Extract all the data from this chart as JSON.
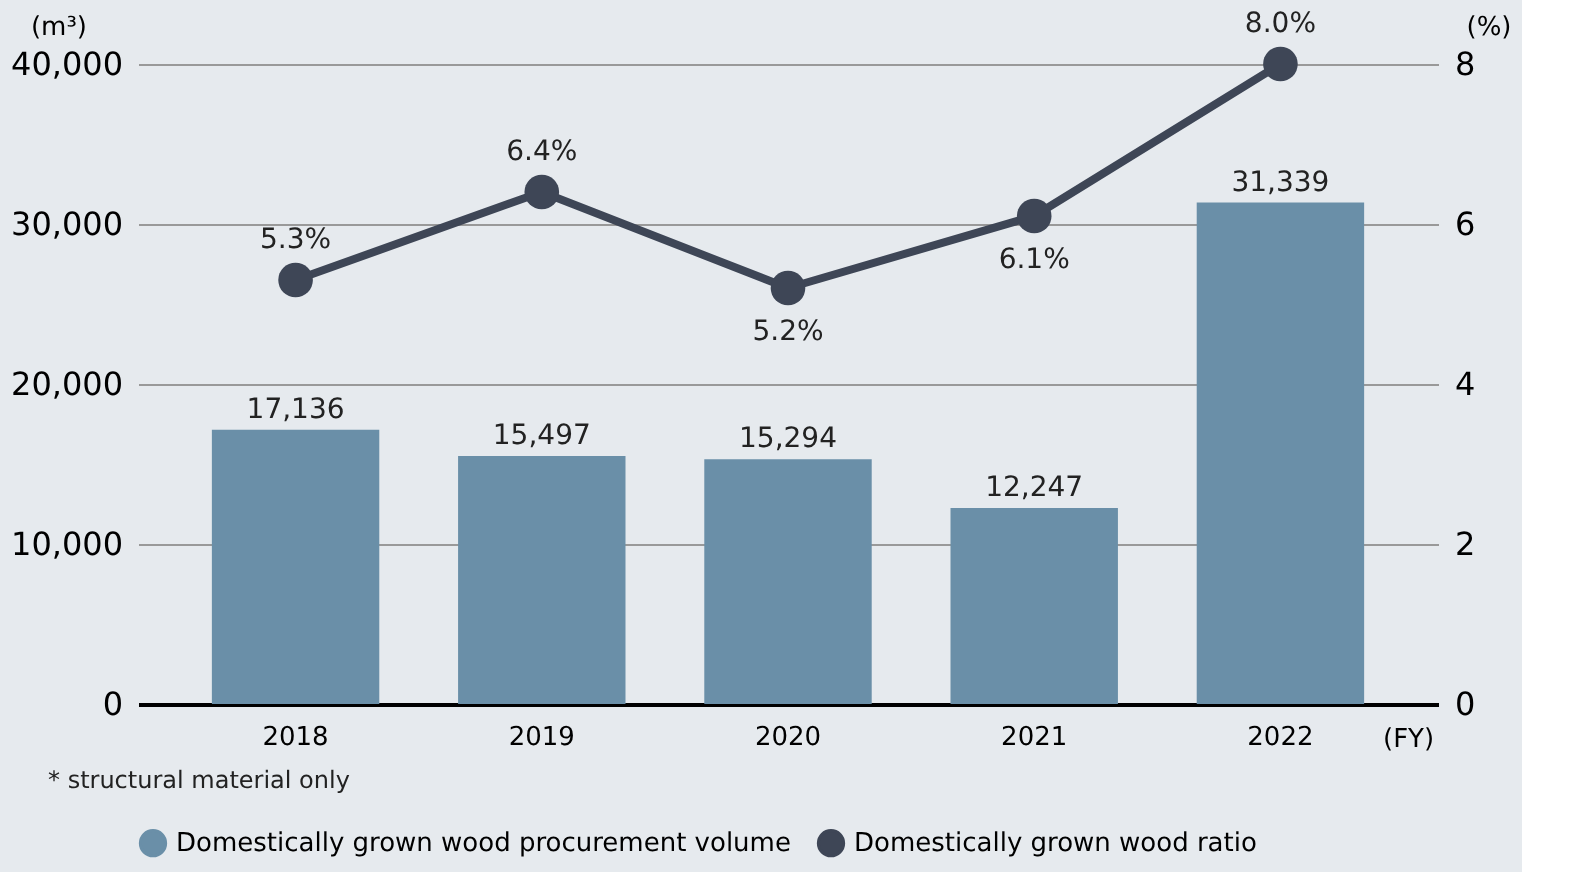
{
  "chart_data": {
    "type": "bar",
    "categories": [
      "2018",
      "2019",
      "2020",
      "2021",
      "2022"
    ],
    "xlabel": "(FY)",
    "ylabel": "(m³)",
    "y2label": "(%)",
    "series": [
      {
        "name": "Domestically grown wood procurement volume",
        "color": "#6a8fa8",
        "values": [
          17136,
          15497,
          15294,
          12247,
          31339
        ],
        "value_labels": [
          "17,136",
          "15,497",
          "15,294",
          "12,247",
          "31,339"
        ]
      },
      {
        "name": "Domestically grown wood ratio",
        "type": "line",
        "axis": "y2",
        "color": "#3e4656",
        "marker": "circle",
        "values": [
          5.3,
          6.4,
          5.2,
          6.1,
          8.0
        ],
        "value_labels": [
          "5.3%",
          "6.4%",
          "5.2%",
          "6.1%",
          "8.0%"
        ]
      }
    ],
    "ylim": [
      0,
      40000
    ],
    "yticks": [
      {
        "value": 0,
        "label": "0"
      },
      {
        "value": 10000,
        "label": "10,000"
      },
      {
        "value": 20000,
        "label": "20,000"
      },
      {
        "value": 30000,
        "label": "30,000"
      },
      {
        "value": 40000,
        "label": "40,000"
      }
    ],
    "y2lim": [
      0,
      8
    ],
    "y2ticks": [
      0,
      2,
      4,
      6,
      8
    ],
    "grid": "y",
    "legend": "bottom",
    "annotations": [
      "* structural material only"
    ]
  }
}
